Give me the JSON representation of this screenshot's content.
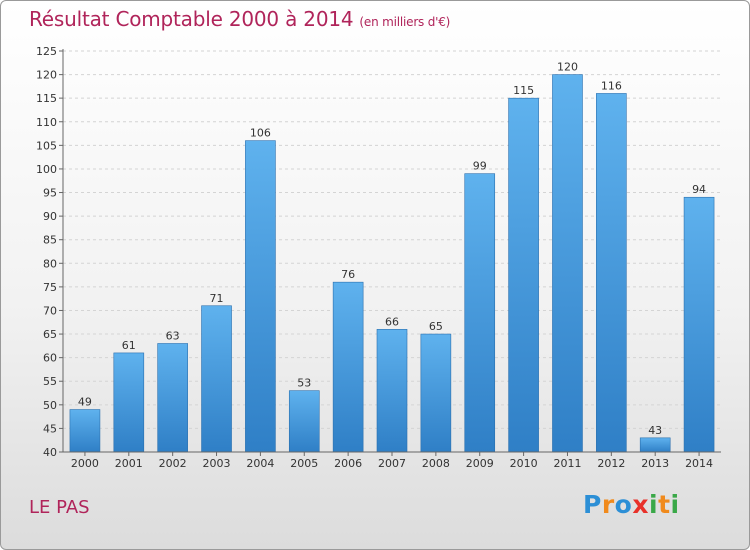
{
  "header": {
    "title": "Résultat Comptable 2000 à 2014",
    "subtitle": "(en milliers d'€)"
  },
  "footer": {
    "city": "LE PAS",
    "logo_letters": [
      "P",
      "r",
      "o",
      "x",
      "i",
      "t",
      "i"
    ],
    "logo_colors": [
      "#2c8fd6",
      "#f08a1c",
      "#2c8fd6",
      "#e8312a",
      "#3aa848",
      "#f08a1c",
      "#3aa848"
    ]
  },
  "colors": {
    "bar_light": "#5fb2ee",
    "bar_dark": "#2f7fc6",
    "accent": "#b0245a"
  },
  "chart_data": {
    "type": "bar",
    "title": "Résultat Comptable 2000 à 2014",
    "subtitle": "(en milliers d'€)",
    "xlabel": "",
    "ylabel": "",
    "categories": [
      "2000",
      "2001",
      "2002",
      "2003",
      "2004",
      "2005",
      "2006",
      "2007",
      "2008",
      "2009",
      "2010",
      "2011",
      "2012",
      "2013",
      "2014"
    ],
    "values": [
      49,
      61,
      63,
      71,
      106,
      53,
      76,
      66,
      65,
      99,
      115,
      120,
      116,
      43,
      94
    ],
    "value_labels": [
      "49",
      "61",
      "63",
      "71",
      "106",
      "53",
      "76",
      "66",
      "65",
      "99",
      "115",
      "120",
      "116",
      "43",
      "94"
    ],
    "ylim": [
      40,
      125
    ],
    "yticks": [
      "40",
      "45",
      "50",
      "55",
      "60",
      "65",
      "70",
      "75",
      "80",
      "85",
      "90",
      "95",
      "100",
      "105",
      "110",
      "115",
      "120",
      "125"
    ],
    "grid": true,
    "legend": "none"
  }
}
